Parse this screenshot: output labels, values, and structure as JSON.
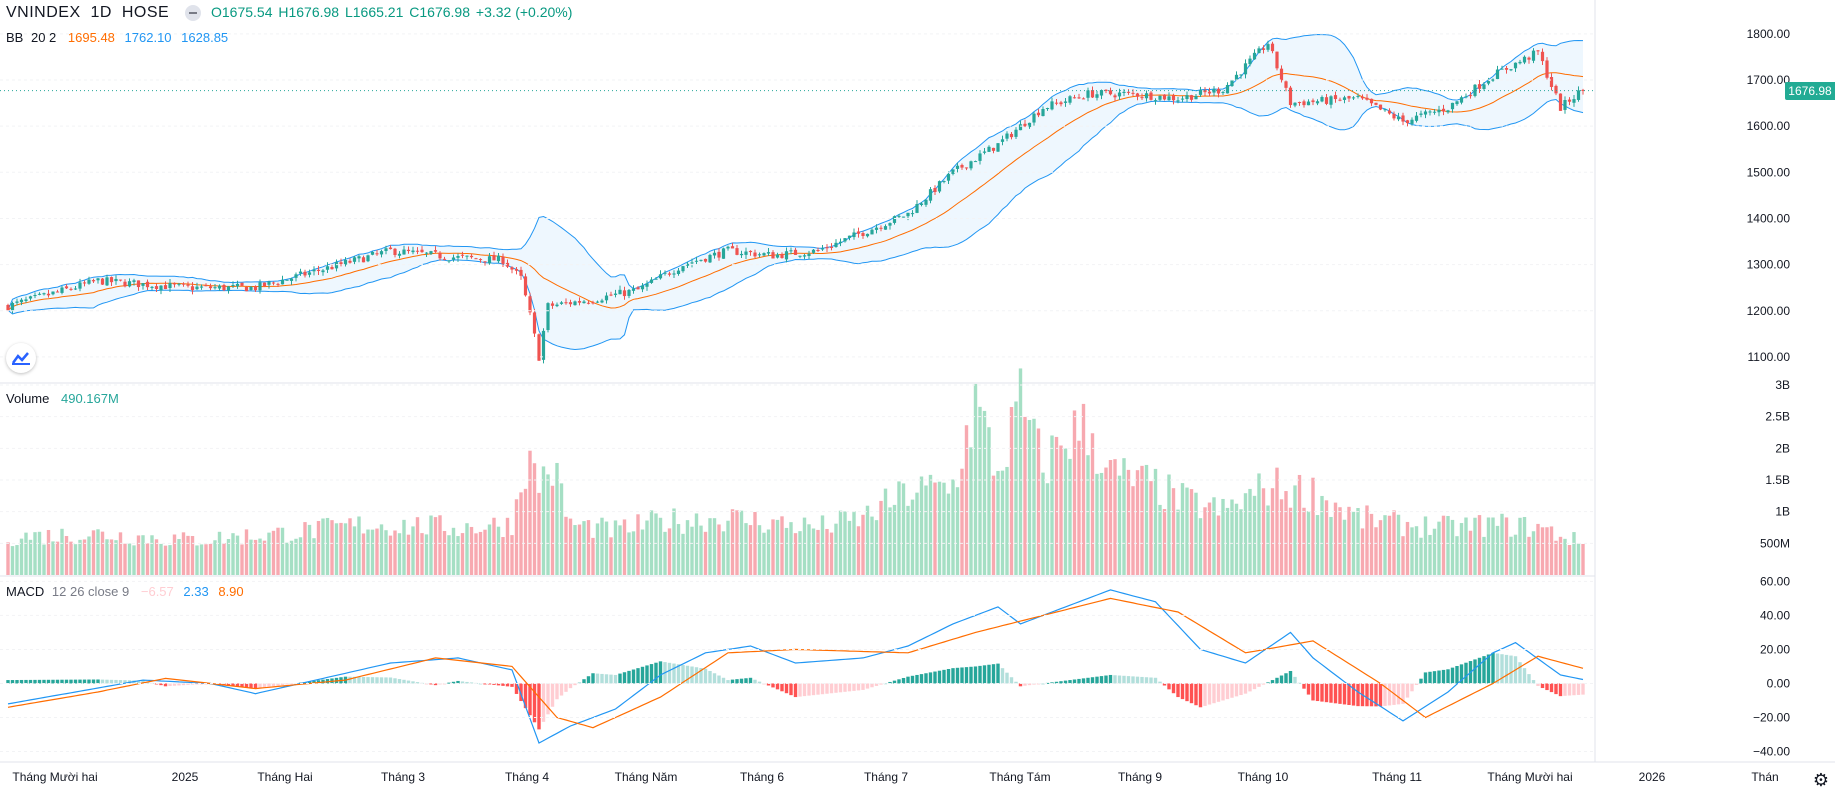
{
  "header": {
    "symbol": "VNINDEX",
    "interval": "1D",
    "exchange": "HOSE",
    "open": "O1675.54",
    "high": "H1676.98",
    "low": "L1665.21",
    "close": "C1676.98",
    "change": "+3.32 (+0.20%)"
  },
  "bb_legend": {
    "name": "BB",
    "params": "20 2",
    "basis": "1695.48",
    "upper": "1762.10",
    "lower": "1628.85"
  },
  "volume_legend": {
    "name": "Volume",
    "value": "490.167M"
  },
  "macd_legend": {
    "name": "MACD",
    "params": "12 26 close 9",
    "hist": "−6.57",
    "macd": "2.33",
    "signal": "8.90"
  },
  "last_price_label": "1676.98",
  "colors": {
    "up": "#26a69a",
    "down": "#ef5350",
    "bb_band": "#2196f3",
    "bb_basis": "#ff6d00",
    "bb_fill": "#e3f2fd",
    "macd_line": "#2196f3",
    "signal_line": "#ff6d00",
    "grid": "#f0f3fa",
    "axis_text": "#131722"
  },
  "chart_data": [
    {
      "type": "candlestick",
      "panel": "price",
      "ylim": [
        1050,
        1830
      ],
      "y_ticks": [
        "1800.00",
        "1700.00",
        "1600.00",
        "1500.00",
        "1400.00",
        "1300.00",
        "1200.00",
        "1100.00"
      ],
      "last_close": 1676.98,
      "anchors_close": [
        [
          0,
          1210
        ],
        [
          20,
          1265
        ],
        [
          40,
          1250
        ],
        [
          55,
          1250
        ],
        [
          70,
          1290
        ],
        [
          85,
          1330
        ],
        [
          100,
          1315
        ],
        [
          110,
          1310
        ],
        [
          114,
          1270
        ],
        [
          116,
          1190
        ],
        [
          118,
          1100
        ],
        [
          120,
          1210
        ],
        [
          130,
          1225
        ],
        [
          140,
          1245
        ],
        [
          150,
          1300
        ],
        [
          160,
          1330
        ],
        [
          170,
          1320
        ],
        [
          180,
          1330
        ],
        [
          190,
          1370
        ],
        [
          200,
          1410
        ],
        [
          210,
          1500
        ],
        [
          220,
          1560
        ],
        [
          230,
          1640
        ],
        [
          240,
          1670
        ],
        [
          250,
          1670
        ],
        [
          260,
          1660
        ],
        [
          270,
          1680
        ],
        [
          280,
          1780
        ],
        [
          285,
          1650
        ],
        [
          300,
          1660
        ],
        [
          310,
          1610
        ],
        [
          320,
          1640
        ],
        [
          330,
          1710
        ],
        [
          340,
          1760
        ],
        [
          345,
          1640
        ],
        [
          350,
          1680
        ]
      ],
      "series": [
        {
          "name": "BB",
          "params": "20 2",
          "basis_last": 1695.48,
          "upper_last": 1762.1,
          "lower_last": 1628.85
        }
      ]
    },
    {
      "type": "bar",
      "panel": "volume",
      "ylim": [
        0,
        3000
      ],
      "unit": "M",
      "y_ticks": [
        "3B",
        "2.5B",
        "2B",
        "1.5B",
        "1B",
        "500M"
      ],
      "last_value": 490.167,
      "anchors": [
        [
          0,
          600
        ],
        [
          20,
          650
        ],
        [
          40,
          550
        ],
        [
          60,
          650
        ],
        [
          80,
          800
        ],
        [
          100,
          750
        ],
        [
          112,
          800
        ],
        [
          115,
          1800
        ],
        [
          118,
          1500
        ],
        [
          121,
          1700
        ],
        [
          125,
          800
        ],
        [
          135,
          700
        ],
        [
          145,
          850
        ],
        [
          160,
          900
        ],
        [
          180,
          750
        ],
        [
          190,
          900
        ],
        [
          200,
          1300
        ],
        [
          210,
          1400
        ],
        [
          215,
          2700
        ],
        [
          220,
          1600
        ],
        [
          225,
          2700
        ],
        [
          230,
          1700
        ],
        [
          235,
          2200
        ],
        [
          240,
          2300
        ],
        [
          245,
          1600
        ],
        [
          255,
          1400
        ],
        [
          260,
          1200
        ],
        [
          270,
          1000
        ],
        [
          280,
          1400
        ],
        [
          290,
          1300
        ],
        [
          300,
          900
        ],
        [
          310,
          800
        ],
        [
          320,
          750
        ],
        [
          330,
          800
        ],
        [
          340,
          750
        ],
        [
          350,
          500
        ]
      ]
    },
    {
      "type": "line",
      "panel": "macd",
      "ylim": [
        -45,
        62
      ],
      "y_ticks": [
        "60.00",
        "40.00",
        "20.00",
        "0.00",
        "−20.00",
        "−40.00"
      ],
      "series": [
        {
          "name": "MACD",
          "anchors": [
            [
              0,
              -12
            ],
            [
              15,
              -5
            ],
            [
              30,
              2
            ],
            [
              45,
              0
            ],
            [
              55,
              -6
            ],
            [
              70,
              3
            ],
            [
              85,
              12
            ],
            [
              100,
              15
            ],
            [
              112,
              8
            ],
            [
              118,
              -35
            ],
            [
              125,
              -25
            ],
            [
              135,
              -15
            ],
            [
              145,
              5
            ],
            [
              155,
              18
            ],
            [
              165,
              22
            ],
            [
              175,
              12
            ],
            [
              190,
              15
            ],
            [
              200,
              22
            ],
            [
              210,
              35
            ],
            [
              220,
              45
            ],
            [
              225,
              35
            ],
            [
              235,
              45
            ],
            [
              245,
              55
            ],
            [
              255,
              48
            ],
            [
              265,
              20
            ],
            [
              275,
              12
            ],
            [
              285,
              30
            ],
            [
              290,
              15
            ],
            [
              300,
              -5
            ],
            [
              310,
              -22
            ],
            [
              320,
              -5
            ],
            [
              330,
              18
            ],
            [
              335,
              24
            ],
            [
              345,
              5
            ],
            [
              350,
              2.33
            ]
          ]
        },
        {
          "name": "Signal",
          "anchors": [
            [
              0,
              -14
            ],
            [
              20,
              -5
            ],
            [
              35,
              3
            ],
            [
              55,
              -3
            ],
            [
              75,
              2
            ],
            [
              95,
              15
            ],
            [
              112,
              10
            ],
            [
              122,
              -20
            ],
            [
              130,
              -26
            ],
            [
              145,
              -8
            ],
            [
              160,
              18
            ],
            [
              175,
              20
            ],
            [
              200,
              18
            ],
            [
              215,
              30
            ],
            [
              230,
              40
            ],
            [
              245,
              50
            ],
            [
              260,
              42
            ],
            [
              275,
              18
            ],
            [
              290,
              25
            ],
            [
              305,
              0
            ],
            [
              315,
              -20
            ],
            [
              330,
              0
            ],
            [
              340,
              16
            ],
            [
              350,
              8.9
            ]
          ]
        }
      ],
      "histogram_last": -6.57
    }
  ],
  "x_labels": [
    "Tháng Mười hai",
    "2025",
    "Tháng Hai",
    "Tháng 3",
    "Tháng 4",
    "Tháng Năm",
    "Tháng 6",
    "Tháng 7",
    "Tháng Tám",
    "Tháng 9",
    "Tháng 10",
    "Tháng 11",
    "Tháng Mười hai",
    "2026",
    "Thán"
  ]
}
